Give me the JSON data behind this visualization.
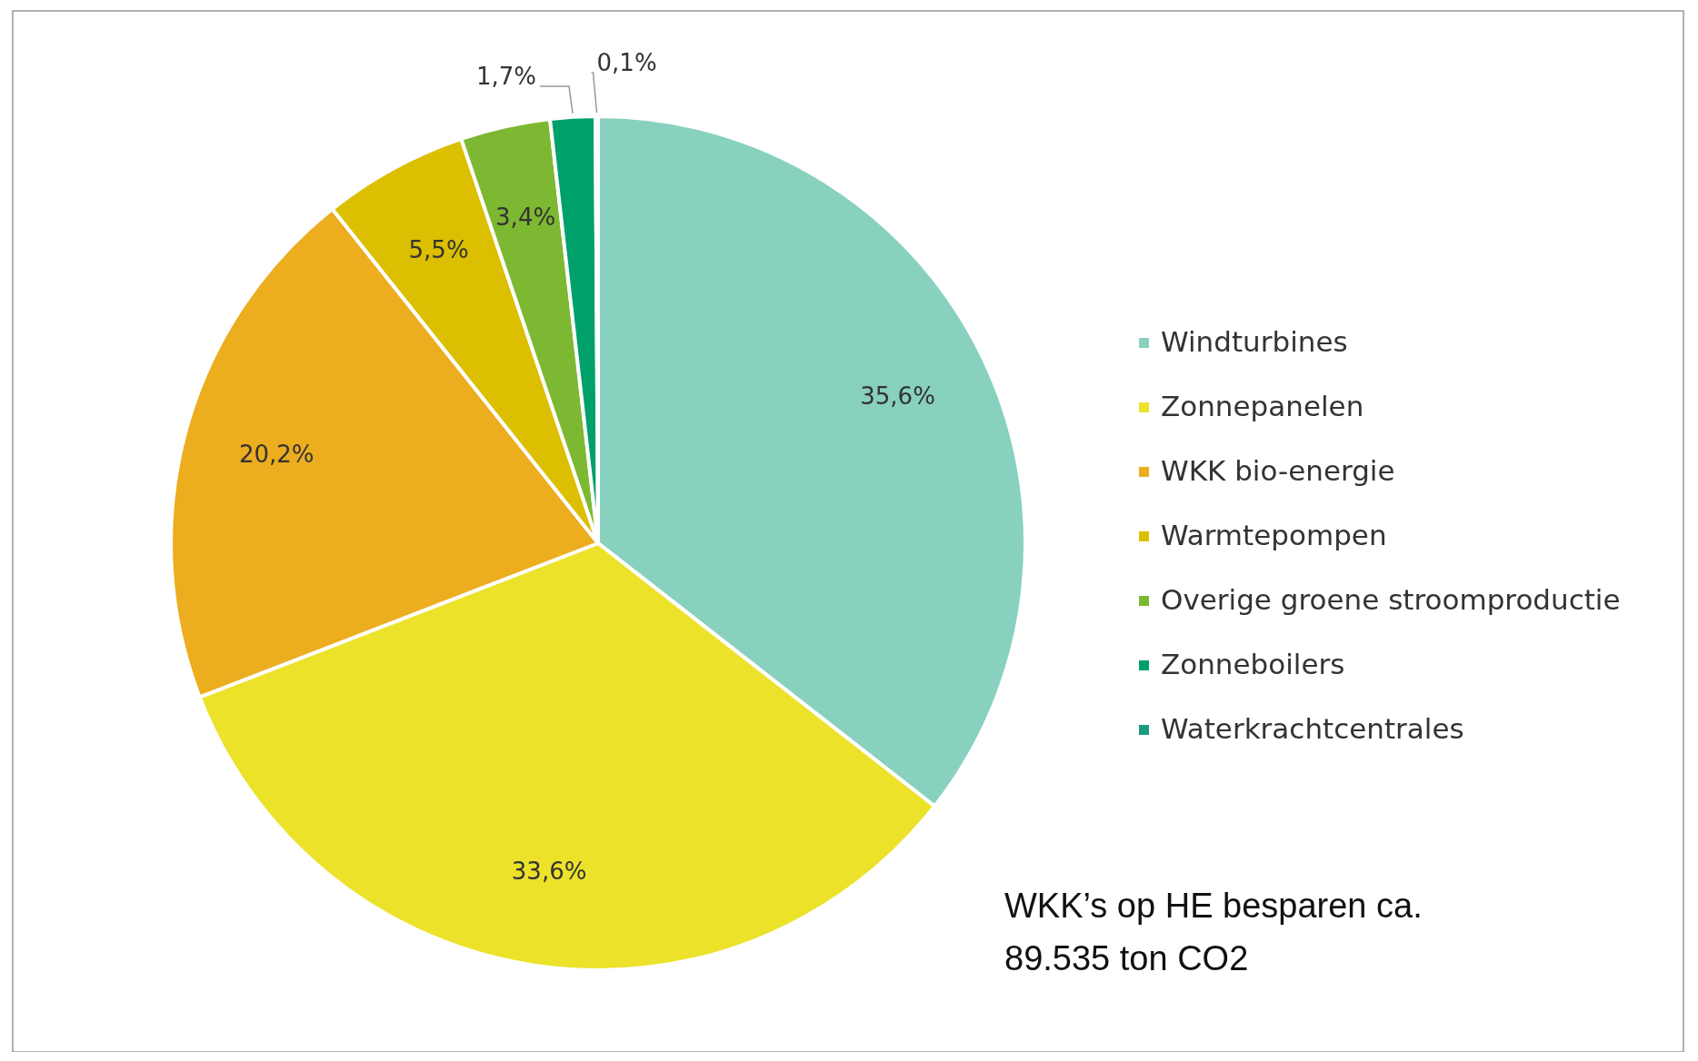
{
  "chart_data": {
    "type": "pie",
    "categories": [
      "Windturbines",
      "Zonnepanelen",
      "WKK bio-energie",
      "Warmtepompen",
      "Overige groene stroomproductie",
      "Zonneboilers",
      "Waterkrachtcentrales"
    ],
    "values": [
      35.6,
      33.6,
      20.2,
      5.5,
      3.4,
      1.7,
      0.1
    ],
    "colors": [
      "#88d1bf",
      "#ece22a",
      "#ecad1f",
      "#dbbf00",
      "#7db832",
      "#00a06a",
      "#1a9a80"
    ],
    "value_labels": [
      "35,6%",
      "33,6%",
      "20,2%",
      "5,5%",
      "3,4%",
      "1,7%",
      "0,1%"
    ],
    "legend": "right",
    "annotations": [
      "WKK’s op HE besparen ca.\n89.535 ton CO2"
    ]
  }
}
